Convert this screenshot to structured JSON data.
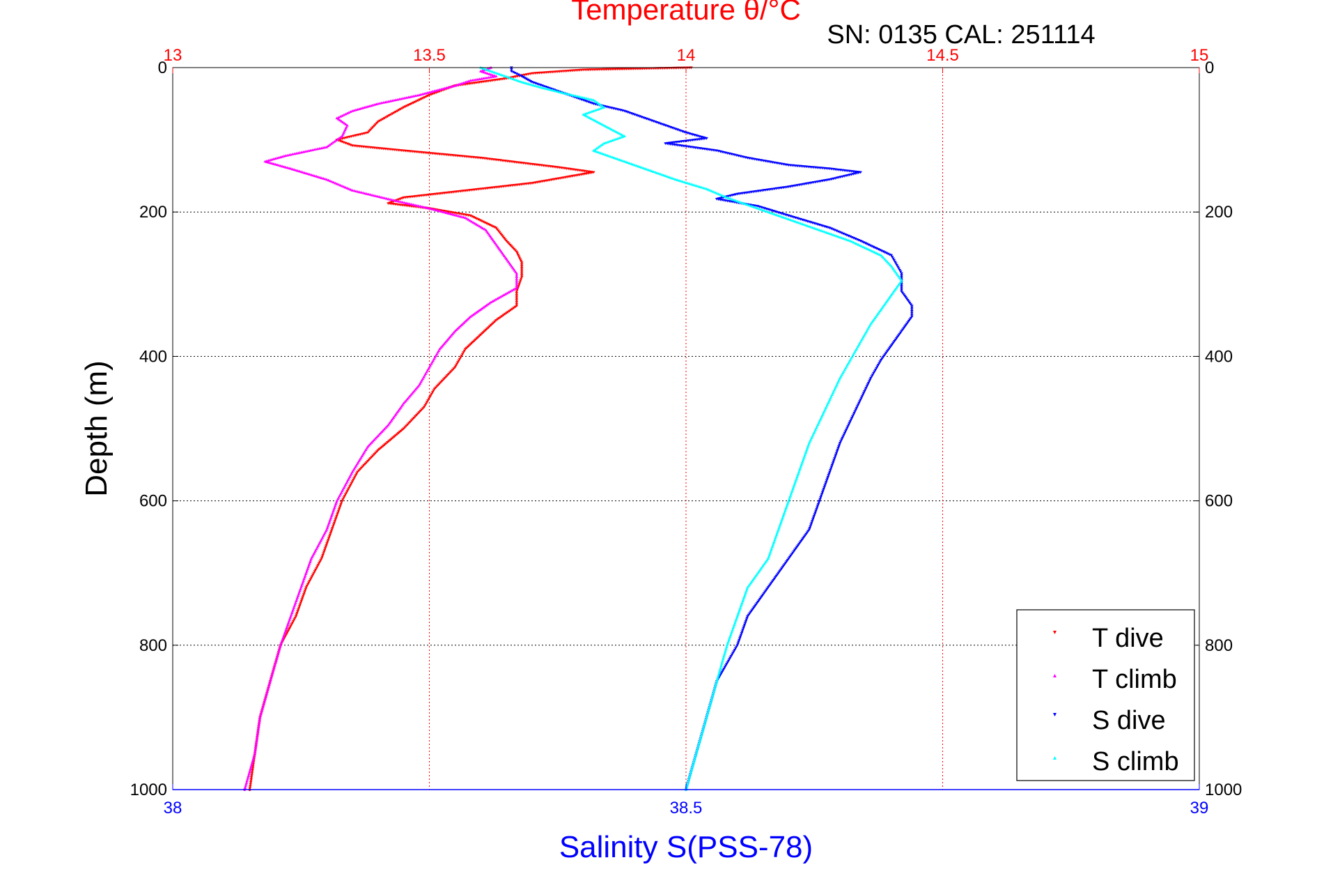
{
  "chart_data": {
    "type": "scatter",
    "title": "Temperature θ/°C",
    "subtitle": "SN: 0135  CAL: 251114",
    "ylabel": "Depth (m)",
    "xlabel": "Salinity S(PSS-78)",
    "colors": {
      "temperature_axis": "#ff0000",
      "salinity_axis": "#0000ff",
      "grid_temperature": "#ff0000",
      "grid_depth": "#000000"
    },
    "y_axis": {
      "range": [
        0,
        1000
      ],
      "reversed": true,
      "ticks": [
        0,
        200,
        400,
        600,
        800,
        1000
      ],
      "tick_labels": [
        "0",
        "200",
        "400",
        "600",
        "800",
        "1000"
      ]
    },
    "temperature_axis": {
      "position": "top",
      "range": [
        13,
        15
      ],
      "ticks": [
        13,
        13.5,
        14,
        14.5,
        15
      ],
      "tick_labels": [
        "13",
        "13.5",
        "14",
        "14.5",
        "15"
      ]
    },
    "salinity_axis": {
      "position": "bottom",
      "range": [
        38,
        39
      ],
      "ticks": [
        38,
        38.5,
        39
      ],
      "tick_labels": [
        "38",
        "38.5",
        "39"
      ]
    },
    "grid": true,
    "legend": {
      "position": "bottom-right",
      "entries": [
        "T dive",
        "T climb",
        "S dive",
        "S climb"
      ]
    },
    "series": [
      {
        "name": "T dive",
        "axis": "temperature",
        "color": "#ff0000",
        "marker": "triangle-down",
        "points": [
          [
            14.01,
            0
          ],
          [
            13.8,
            3
          ],
          [
            13.7,
            8
          ],
          [
            13.65,
            15
          ],
          [
            13.55,
            25
          ],
          [
            13.5,
            38
          ],
          [
            13.45,
            55
          ],
          [
            13.4,
            75
          ],
          [
            13.38,
            90
          ],
          [
            13.32,
            100
          ],
          [
            13.35,
            108
          ],
          [
            13.45,
            115
          ],
          [
            13.6,
            125
          ],
          [
            13.75,
            138
          ],
          [
            13.82,
            145
          ],
          [
            13.7,
            160
          ],
          [
            13.55,
            172
          ],
          [
            13.45,
            180
          ],
          [
            13.42,
            188
          ],
          [
            13.5,
            195
          ],
          [
            13.58,
            205
          ],
          [
            13.63,
            222
          ],
          [
            13.65,
            240
          ],
          [
            13.67,
            255
          ],
          [
            13.68,
            270
          ],
          [
            13.68,
            290
          ],
          [
            13.67,
            310
          ],
          [
            13.67,
            330
          ],
          [
            13.63,
            350
          ],
          [
            13.6,
            370
          ],
          [
            13.57,
            390
          ],
          [
            13.55,
            415
          ],
          [
            13.51,
            445
          ],
          [
            13.49,
            470
          ],
          [
            13.45,
            500
          ],
          [
            13.4,
            530
          ],
          [
            13.36,
            560
          ],
          [
            13.33,
            600
          ],
          [
            13.31,
            640
          ],
          [
            13.29,
            680
          ],
          [
            13.26,
            720
          ],
          [
            13.24,
            760
          ],
          [
            13.21,
            800
          ],
          [
            13.19,
            850
          ],
          [
            13.17,
            900
          ],
          [
            13.16,
            950
          ],
          [
            13.15,
            1000
          ]
        ]
      },
      {
        "name": "T climb",
        "axis": "temperature",
        "color": "#ff00ff",
        "marker": "triangle-up",
        "points": [
          [
            13.62,
            0
          ],
          [
            13.6,
            5
          ],
          [
            13.63,
            12
          ],
          [
            13.58,
            18
          ],
          [
            13.55,
            25
          ],
          [
            13.48,
            38
          ],
          [
            13.4,
            50
          ],
          [
            13.35,
            60
          ],
          [
            13.32,
            70
          ],
          [
            13.34,
            80
          ],
          [
            13.33,
            95
          ],
          [
            13.3,
            110
          ],
          [
            13.22,
            122
          ],
          [
            13.18,
            130
          ],
          [
            13.23,
            140
          ],
          [
            13.3,
            155
          ],
          [
            13.35,
            170
          ],
          [
            13.42,
            182
          ],
          [
            13.5,
            195
          ],
          [
            13.57,
            208
          ],
          [
            13.61,
            225
          ],
          [
            13.63,
            245
          ],
          [
            13.65,
            265
          ],
          [
            13.67,
            285
          ],
          [
            13.67,
            305
          ],
          [
            13.62,
            325
          ],
          [
            13.58,
            345
          ],
          [
            13.55,
            365
          ],
          [
            13.52,
            390
          ],
          [
            13.5,
            415
          ],
          [
            13.48,
            440
          ],
          [
            13.45,
            465
          ],
          [
            13.42,
            495
          ],
          [
            13.38,
            525
          ],
          [
            13.35,
            560
          ],
          [
            13.32,
            600
          ],
          [
            13.3,
            640
          ],
          [
            13.27,
            680
          ],
          [
            13.25,
            720
          ],
          [
            13.23,
            760
          ],
          [
            13.21,
            800
          ],
          [
            13.19,
            850
          ],
          [
            13.17,
            900
          ],
          [
            13.16,
            950
          ],
          [
            13.14,
            1000
          ]
        ]
      },
      {
        "name": "S dive",
        "axis": "salinity",
        "color": "#0000ff",
        "marker": "triangle-down",
        "points": [
          [
            38.33,
            0
          ],
          [
            38.33,
            5
          ],
          [
            38.34,
            12
          ],
          [
            38.35,
            20
          ],
          [
            38.37,
            30
          ],
          [
            38.39,
            40
          ],
          [
            38.41,
            50
          ],
          [
            38.44,
            60
          ],
          [
            38.46,
            70
          ],
          [
            38.48,
            80
          ],
          [
            38.5,
            90
          ],
          [
            38.52,
            98
          ],
          [
            38.48,
            105
          ],
          [
            38.53,
            115
          ],
          [
            38.56,
            125
          ],
          [
            38.6,
            135
          ],
          [
            38.64,
            140
          ],
          [
            38.67,
            145
          ],
          [
            38.64,
            155
          ],
          [
            38.6,
            165
          ],
          [
            38.55,
            175
          ],
          [
            38.53,
            182
          ],
          [
            38.57,
            192
          ],
          [
            38.6,
            205
          ],
          [
            38.64,
            222
          ],
          [
            38.67,
            240
          ],
          [
            38.7,
            260
          ],
          [
            38.71,
            285
          ],
          [
            38.71,
            310
          ],
          [
            38.72,
            330
          ],
          [
            38.72,
            345
          ],
          [
            38.71,
            365
          ],
          [
            38.7,
            385
          ],
          [
            38.69,
            405
          ],
          [
            38.68,
            430
          ],
          [
            38.67,
            460
          ],
          [
            38.66,
            490
          ],
          [
            38.65,
            520
          ],
          [
            38.64,
            560
          ],
          [
            38.63,
            600
          ],
          [
            38.62,
            640
          ],
          [
            38.6,
            680
          ],
          [
            38.58,
            720
          ],
          [
            38.56,
            760
          ],
          [
            38.55,
            800
          ],
          [
            38.53,
            850
          ],
          [
            38.52,
            900
          ],
          [
            38.51,
            950
          ],
          [
            38.5,
            1000
          ]
        ]
      },
      {
        "name": "S climb",
        "axis": "salinity",
        "color": "#00ffff",
        "marker": "triangle-up",
        "points": [
          [
            38.3,
            0
          ],
          [
            38.31,
            5
          ],
          [
            38.32,
            10
          ],
          [
            38.34,
            20
          ],
          [
            38.36,
            28
          ],
          [
            38.38,
            35
          ],
          [
            38.41,
            45
          ],
          [
            38.42,
            55
          ],
          [
            38.4,
            65
          ],
          [
            38.42,
            80
          ],
          [
            38.44,
            95
          ],
          [
            38.42,
            105
          ],
          [
            38.41,
            115
          ],
          [
            38.43,
            125
          ],
          [
            38.46,
            140
          ],
          [
            38.49,
            155
          ],
          [
            38.52,
            168
          ],
          [
            38.54,
            180
          ],
          [
            38.56,
            190
          ],
          [
            38.59,
            205
          ],
          [
            38.62,
            220
          ],
          [
            38.66,
            240
          ],
          [
            38.69,
            260
          ],
          [
            38.7,
            275
          ],
          [
            38.71,
            295
          ],
          [
            38.7,
            315
          ],
          [
            38.69,
            335
          ],
          [
            38.68,
            355
          ],
          [
            38.67,
            380
          ],
          [
            38.66,
            405
          ],
          [
            38.65,
            430
          ],
          [
            38.64,
            460
          ],
          [
            38.63,
            490
          ],
          [
            38.62,
            520
          ],
          [
            38.61,
            560
          ],
          [
            38.6,
            600
          ],
          [
            38.59,
            640
          ],
          [
            38.58,
            680
          ],
          [
            38.56,
            720
          ],
          [
            38.55,
            760
          ],
          [
            38.54,
            800
          ],
          [
            38.53,
            850
          ],
          [
            38.52,
            900
          ],
          [
            38.51,
            950
          ],
          [
            38.5,
            1000
          ]
        ]
      }
    ]
  }
}
